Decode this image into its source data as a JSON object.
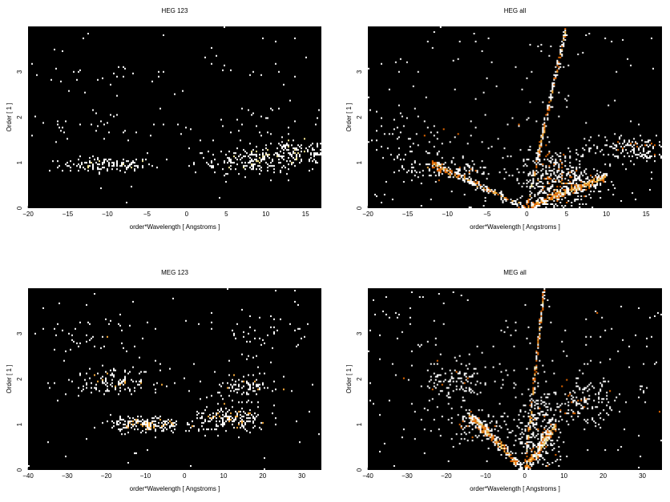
{
  "colors": {
    "background": "#ffffff",
    "plot_bg": "#000000",
    "colormap": [
      "#3a0000",
      "#7a0800",
      "#b82a00",
      "#e86a00",
      "#ffb13c",
      "#fff09a",
      "#ffffff"
    ]
  },
  "chart_data": [
    {
      "type": "heatmap",
      "title": "HEG 123",
      "xlabel": "order*Wavelength [ Angstroms ]",
      "ylabel": "Order [ 1 ]",
      "xlim": [
        -20,
        17
      ],
      "ylim": [
        0,
        4
      ],
      "xticks": [
        -20,
        -15,
        -10,
        -5,
        0,
        5,
        10,
        15
      ],
      "yticks": [
        0,
        1,
        2,
        3
      ],
      "features": [
        {
          "kind": "blob",
          "cx": -10,
          "cy": 0.95,
          "sx": 3.0,
          "sy": 0.08,
          "w": 130
        },
        {
          "kind": "blob",
          "cx": 9,
          "cy": 1.05,
          "sx": 4.0,
          "sy": 0.14,
          "w": 220
        },
        {
          "kind": "blob",
          "cx": 14,
          "cy": 1.25,
          "sx": 2.5,
          "sy": 0.12,
          "w": 90
        },
        {
          "kind": "blob",
          "cx": -10,
          "cy": 1.8,
          "sx": 6.0,
          "sy": 0.2,
          "w": 35
        },
        {
          "kind": "blob",
          "cx": 10,
          "cy": 1.9,
          "sx": 5.0,
          "sy": 0.2,
          "w": 30
        },
        {
          "kind": "blob",
          "cx": -10,
          "cy": 2.95,
          "sx": 5.0,
          "sy": 0.1,
          "w": 20
        },
        {
          "kind": "blob",
          "cx": 8,
          "cy": 3.0,
          "sx": 5.0,
          "sy": 0.15,
          "w": 15
        },
        {
          "kind": "uniform",
          "w": 40
        }
      ]
    },
    {
      "type": "heatmap",
      "title": "HEG all",
      "xlabel": "order*Wavelength [ Angstroms ]",
      "ylabel": "Order [ 1 ]",
      "xlim": [
        -20,
        17
      ],
      "ylim": [
        0,
        4
      ],
      "xticks": [
        -20,
        -15,
        -10,
        -5,
        0,
        5,
        10,
        15
      ],
      "yticks": [
        0,
        1,
        2,
        3
      ],
      "features": [
        {
          "kind": "line",
          "x0": 0,
          "y0": 0,
          "x1": -12,
          "y1": 1.0,
          "w": 260,
          "spread": 0.08
        },
        {
          "kind": "line",
          "x0": 0,
          "y0": 0,
          "x1": 10,
          "y1": 0.7,
          "w": 380,
          "spread": 0.09
        },
        {
          "kind": "line",
          "x0": 0,
          "y0": 0,
          "x1": 5,
          "y1": 4.0,
          "w": 260,
          "spread": 0.12
        },
        {
          "kind": "blob",
          "cx": 4,
          "cy": 0.6,
          "sx": 2.5,
          "sy": 0.35,
          "w": 480
        },
        {
          "kind": "blob",
          "cx": 13,
          "cy": 1.3,
          "sx": 3.0,
          "sy": 0.15,
          "w": 160
        },
        {
          "kind": "blob",
          "cx": -10,
          "cy": 0.85,
          "sx": 3.0,
          "sy": 0.12,
          "w": 120
        },
        {
          "kind": "blob",
          "cx": -14,
          "cy": 1.6,
          "sx": 4.0,
          "sy": 0.3,
          "w": 60
        },
        {
          "kind": "uniform",
          "w": 150
        }
      ]
    },
    {
      "type": "heatmap",
      "title": "MEG 123",
      "xlabel": "order*Wavelength [ Angstroms ]",
      "ylabel": "Order [ 1 ]",
      "xlim": [
        -40,
        35
      ],
      "ylim": [
        0,
        4
      ],
      "xticks": [
        -40,
        -30,
        -20,
        -10,
        0,
        10,
        20,
        30
      ],
      "yticks": [
        0,
        1,
        2,
        3
      ],
      "features": [
        {
          "kind": "blob",
          "cx": -10,
          "cy": 1.0,
          "sx": 4.5,
          "sy": 0.09,
          "w": 190
        },
        {
          "kind": "blob",
          "cx": 12,
          "cy": 1.1,
          "sx": 5.0,
          "sy": 0.14,
          "w": 190
        },
        {
          "kind": "blob",
          "cx": -18,
          "cy": 1.95,
          "sx": 6.0,
          "sy": 0.13,
          "w": 130
        },
        {
          "kind": "blob",
          "cx": 15,
          "cy": 1.85,
          "sx": 4.5,
          "sy": 0.15,
          "w": 90
        },
        {
          "kind": "blob",
          "cx": -22,
          "cy": 2.9,
          "sx": 7.0,
          "sy": 0.25,
          "w": 40
        },
        {
          "kind": "blob",
          "cx": 20,
          "cy": 3.0,
          "sx": 8.0,
          "sy": 0.3,
          "w": 45
        },
        {
          "kind": "uniform",
          "w": 60
        }
      ]
    },
    {
      "type": "heatmap",
      "title": "MEG all",
      "xlabel": "order*Wavelength [ Angstroms ]",
      "ylabel": "Order [ 1 ]",
      "xlim": [
        -40,
        35
      ],
      "ylim": [
        0,
        4
      ],
      "xticks": [
        -40,
        -30,
        -20,
        -10,
        0,
        10,
        20,
        30
      ],
      "yticks": [
        0,
        1,
        2,
        3
      ],
      "features": [
        {
          "kind": "line",
          "x0": 0,
          "y0": 0,
          "x1": -14,
          "y1": 1.2,
          "w": 320,
          "spread": 0.1
        },
        {
          "kind": "line",
          "x0": 0,
          "y0": 0,
          "x1": 8,
          "y1": 1.0,
          "w": 280,
          "spread": 0.1
        },
        {
          "kind": "line",
          "x0": 0,
          "y0": 0,
          "x1": 5,
          "y1": 4.0,
          "w": 220,
          "spread": 0.15
        },
        {
          "kind": "blob",
          "cx": 4,
          "cy": 0.8,
          "sx": 3.0,
          "sy": 0.5,
          "w": 300
        },
        {
          "kind": "blob",
          "cx": 15,
          "cy": 1.5,
          "sx": 4.0,
          "sy": 0.25,
          "w": 150
        },
        {
          "kind": "blob",
          "cx": -18,
          "cy": 1.9,
          "sx": 5.0,
          "sy": 0.25,
          "w": 120
        },
        {
          "kind": "blob",
          "cx": -12,
          "cy": 0.95,
          "sx": 4.0,
          "sy": 0.15,
          "w": 100
        },
        {
          "kind": "uniform",
          "w": 200
        }
      ]
    }
  ]
}
